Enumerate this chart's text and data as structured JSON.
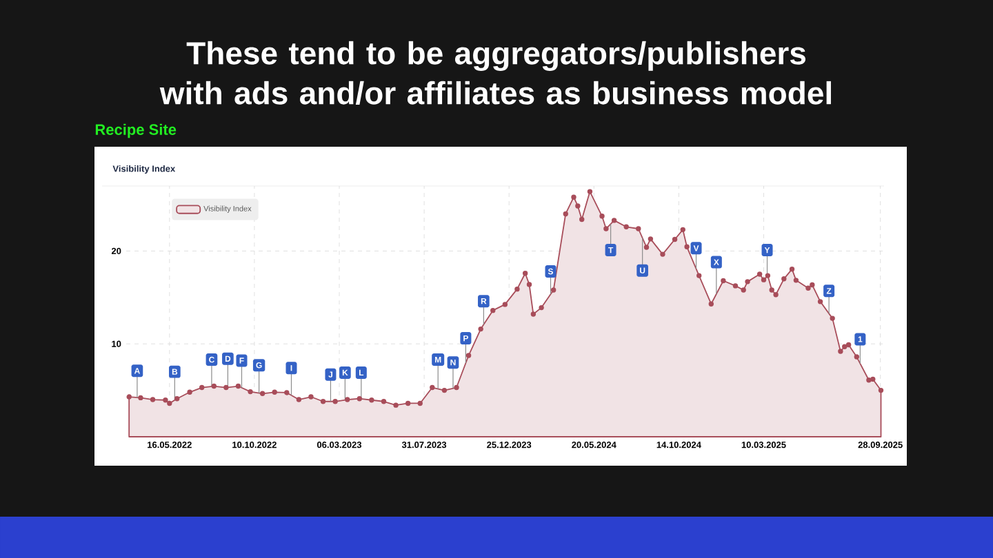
{
  "chart_data": {
    "type": "area",
    "title": "These tend to be aggregators/publishers with ads and/or affiliates as business model",
    "subtitle": "Recipe Site",
    "x": [
      "2022-03-07",
      "2022-03-27",
      "2022-04-17",
      "2022-05-09",
      "2022-05-16",
      "2022-05-29",
      "2022-06-20",
      "2022-07-11",
      "2022-08-01",
      "2022-08-22",
      "2022-09-12",
      "2022-10-03",
      "2022-10-24",
      "2022-11-14",
      "2022-12-05",
      "2022-12-26",
      "2023-01-16",
      "2023-02-06",
      "2023-02-27",
      "2023-03-20",
      "2023-04-10",
      "2023-05-01",
      "2023-05-22",
      "2023-06-12",
      "2023-07-03",
      "2023-07-24",
      "2023-08-14",
      "2023-09-04",
      "2023-09-25",
      "2023-10-16",
      "2023-11-06",
      "2023-11-27",
      "2023-12-18",
      "2024-01-08",
      "2024-01-22",
      "2024-01-29",
      "2024-02-05",
      "2024-02-19",
      "2024-03-11",
      "2024-04-01",
      "2024-04-15",
      "2024-04-22",
      "2024-04-29",
      "2024-05-13",
      "2024-06-03",
      "2024-06-10",
      "2024-06-24",
      "2024-07-15",
      "2024-08-05",
      "2024-08-19",
      "2024-08-26",
      "2024-09-16",
      "2024-10-07",
      "2024-10-21",
      "2024-10-28",
      "2024-11-18",
      "2024-12-09",
      "2024-12-30",
      "2025-01-20",
      "2025-02-03",
      "2025-02-10",
      "2025-03-03",
      "2025-03-10",
      "2025-03-17",
      "2025-03-24",
      "2025-03-31",
      "2025-04-14",
      "2025-04-28",
      "2025-05-05",
      "2025-05-26",
      "2025-06-02",
      "2025-06-16",
      "2025-07-07",
      "2025-07-21",
      "2025-07-28",
      "2025-08-04",
      "2025-08-18",
      "2025-09-08",
      "2025-09-15",
      "2025-09-29"
    ],
    "series": [
      {
        "name": "Visibility Index",
        "color": "#a84d5a",
        "values": [
          4.3,
          4.2,
          4.0,
          3.95,
          3.6,
          4.1,
          4.8,
          5.3,
          5.45,
          5.3,
          5.45,
          4.85,
          4.65,
          4.8,
          4.75,
          4.0,
          4.3,
          3.8,
          3.8,
          4.0,
          4.1,
          3.95,
          3.8,
          3.4,
          3.6,
          3.6,
          5.3,
          5.0,
          5.3,
          8.75,
          11.6,
          13.6,
          14.25,
          15.9,
          17.6,
          16.4,
          13.2,
          13.9,
          15.8,
          24.0,
          25.8,
          24.85,
          23.4,
          26.4,
          23.75,
          22.4,
          23.3,
          22.6,
          22.4,
          20.4,
          21.3,
          19.65,
          21.25,
          22.3,
          20.45,
          17.35,
          14.3,
          16.8,
          16.25,
          15.8,
          16.7,
          17.5,
          16.9,
          17.35,
          15.8,
          15.3,
          17.0,
          18.05,
          16.85,
          16.0,
          16.35,
          14.55,
          12.75,
          9.2,
          9.7,
          9.9,
          8.6,
          6.1,
          6.2,
          5.0
        ]
      }
    ],
    "xlim": [
      "2022-03-02",
      "2025-10-02"
    ],
    "xticks": [
      {
        "value": "2022-05-16",
        "label": "16.05.2022"
      },
      {
        "value": "2022-10-10",
        "label": "10.10.2022"
      },
      {
        "value": "2023-03-06",
        "label": "06.03.2023"
      },
      {
        "value": "2023-07-31",
        "label": "31.07.2023"
      },
      {
        "value": "2023-12-25",
        "label": "25.12.2023"
      },
      {
        "value": "2024-05-20",
        "label": "20.05.2024"
      },
      {
        "value": "2024-10-14",
        "label": "14.10.2024"
      },
      {
        "value": "2025-03-10",
        "label": "10.03.2025"
      },
      {
        "value": "2025-09-28",
        "label": "28.09.2025"
      }
    ],
    "ylim": [
      0,
      27
    ],
    "yticks": [
      10,
      20
    ],
    "grid": true,
    "legend": "top left",
    "marker": "circle",
    "annotations": [
      "Visibility Index",
      {
        "text": "A",
        "x": "2022-03-21",
        "y": 7.1
      },
      {
        "text": "B",
        "x": "2022-05-25",
        "y": 7.0
      },
      {
        "text": "C",
        "x": "2022-07-28",
        "y": 8.3
      },
      {
        "text": "D",
        "x": "2022-08-25",
        "y": 8.4
      },
      {
        "text": "F",
        "x": "2022-09-18",
        "y": 8.2
      },
      {
        "text": "G",
        "x": "2022-10-18",
        "y": 7.7
      },
      {
        "text": "I",
        "x": "2022-12-13",
        "y": 7.4
      },
      {
        "text": "J",
        "x": "2023-02-19",
        "y": 6.7
      },
      {
        "text": "K",
        "x": "2023-03-16",
        "y": 6.9
      },
      {
        "text": "L",
        "x": "2023-04-13",
        "y": 6.9
      },
      {
        "text": "M",
        "x": "2023-08-24",
        "y": 8.3
      },
      {
        "text": "N",
        "x": "2023-09-19",
        "y": 8.0
      },
      {
        "text": "P",
        "x": "2023-10-11",
        "y": 10.6
      },
      {
        "text": "R",
        "x": "2023-11-11",
        "y": 14.6
      },
      {
        "text": "S",
        "x": "2024-03-06",
        "y": 17.8
      },
      {
        "text": "T",
        "x": "2024-06-18",
        "y": 20.1
      },
      {
        "text": "U",
        "x": "2024-08-12",
        "y": 17.9
      },
      {
        "text": "V",
        "x": "2024-11-13",
        "y": 20.3
      },
      {
        "text": "X",
        "x": "2024-12-18",
        "y": 18.8
      },
      {
        "text": "Y",
        "x": "2025-03-16",
        "y": 20.1
      },
      {
        "text": "Z",
        "x": "2025-07-01",
        "y": 15.7
      },
      {
        "text": "1",
        "x": "2025-08-24",
        "y": 10.5
      }
    ]
  }
}
